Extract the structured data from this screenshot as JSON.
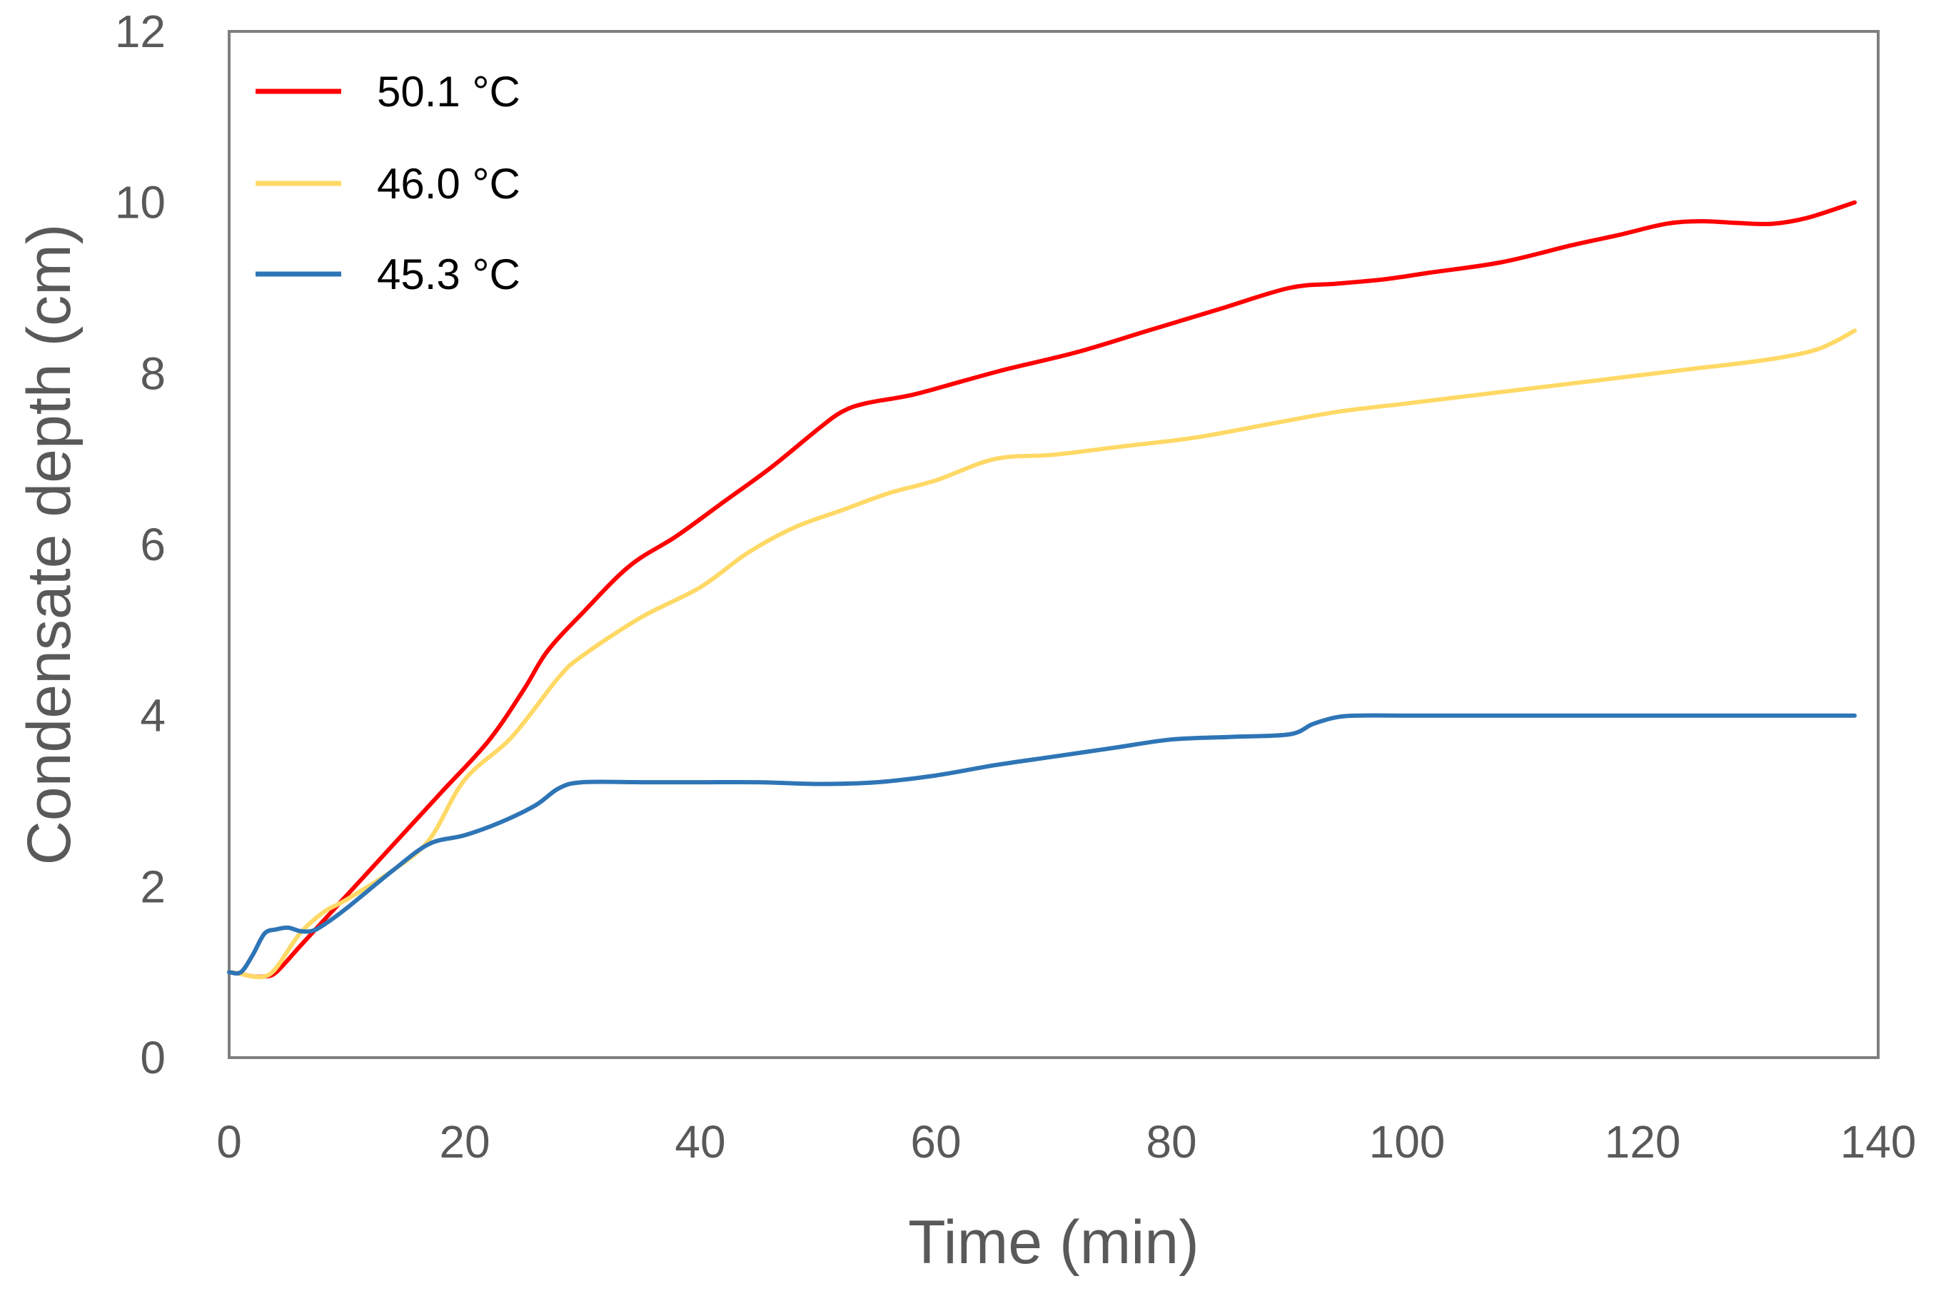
{
  "chart_data": {
    "type": "line",
    "title": "",
    "xlabel": "Time (min)",
    "ylabel": "Condensate depth (cm)",
    "xlim": [
      0,
      140
    ],
    "ylim": [
      0,
      12
    ],
    "xticks": [
      0,
      20,
      40,
      60,
      80,
      100,
      120,
      140
    ],
    "yticks": [
      0,
      2,
      4,
      6,
      8,
      10,
      12
    ],
    "grid": false,
    "legend_position": "top-left",
    "series": [
      {
        "name": "50.1 °C",
        "color": "#ff0000",
        "x": [
          0,
          1,
          2,
          3,
          4,
          6,
          8,
          10,
          14,
          18,
          22,
          25,
          27,
          30,
          34,
          38,
          42,
          46,
          50,
          52,
          54,
          58,
          62,
          66,
          72,
          78,
          84,
          90,
          94,
          98,
          102,
          108,
          114,
          118,
          122,
          125,
          128,
          131,
          134,
          138
        ],
        "y": [
          1.0,
          0.98,
          0.95,
          0.95,
          1.0,
          1.3,
          1.6,
          1.9,
          2.5,
          3.1,
          3.7,
          4.3,
          4.75,
          5.2,
          5.75,
          6.1,
          6.5,
          6.9,
          7.35,
          7.55,
          7.65,
          7.75,
          7.9,
          8.05,
          8.25,
          8.5,
          8.75,
          9.0,
          9.05,
          9.1,
          9.18,
          9.3,
          9.5,
          9.62,
          9.75,
          9.78,
          9.76,
          9.75,
          9.82,
          10.0
        ]
      },
      {
        "name": "46.0 °C",
        "color": "#ffd966",
        "x": [
          0,
          1,
          2,
          3,
          4,
          6,
          8,
          10,
          14,
          17,
          20,
          24,
          28,
          30,
          35,
          40,
          44,
          48,
          52,
          56,
          60,
          65,
          70,
          76,
          82,
          88,
          94,
          100,
          106,
          112,
          118,
          124,
          130,
          134,
          136,
          138
        ],
        "y": [
          1.0,
          0.98,
          0.95,
          0.95,
          1.05,
          1.45,
          1.7,
          1.85,
          2.2,
          2.55,
          3.25,
          3.75,
          4.45,
          4.7,
          5.15,
          5.5,
          5.9,
          6.2,
          6.4,
          6.6,
          6.75,
          7.0,
          7.05,
          7.15,
          7.25,
          7.4,
          7.55,
          7.65,
          7.75,
          7.85,
          7.95,
          8.05,
          8.15,
          8.25,
          8.35,
          8.5
        ]
      },
      {
        "name": "45.3 °C",
        "color": "#2e75b6",
        "x": [
          0,
          1,
          2,
          3,
          4,
          5,
          6,
          7,
          8,
          10,
          14,
          17,
          20,
          23,
          26,
          28,
          30,
          35,
          40,
          45,
          50,
          55,
          60,
          65,
          70,
          75,
          80,
          85,
          90,
          92,
          94,
          96,
          100,
          105,
          110,
          120,
          130,
          138
        ],
        "y": [
          1.0,
          1.0,
          1.2,
          1.45,
          1.5,
          1.52,
          1.48,
          1.48,
          1.55,
          1.75,
          2.2,
          2.5,
          2.6,
          2.75,
          2.95,
          3.15,
          3.22,
          3.22,
          3.22,
          3.22,
          3.2,
          3.22,
          3.3,
          3.42,
          3.52,
          3.62,
          3.72,
          3.75,
          3.78,
          3.9,
          3.98,
          4.0,
          4.0,
          4.0,
          4.0,
          4.0,
          4.0,
          4.0
        ]
      }
    ]
  },
  "colors": {
    "axis": "#595959",
    "frame": "#7f7f7f",
    "background": "#ffffff"
  }
}
